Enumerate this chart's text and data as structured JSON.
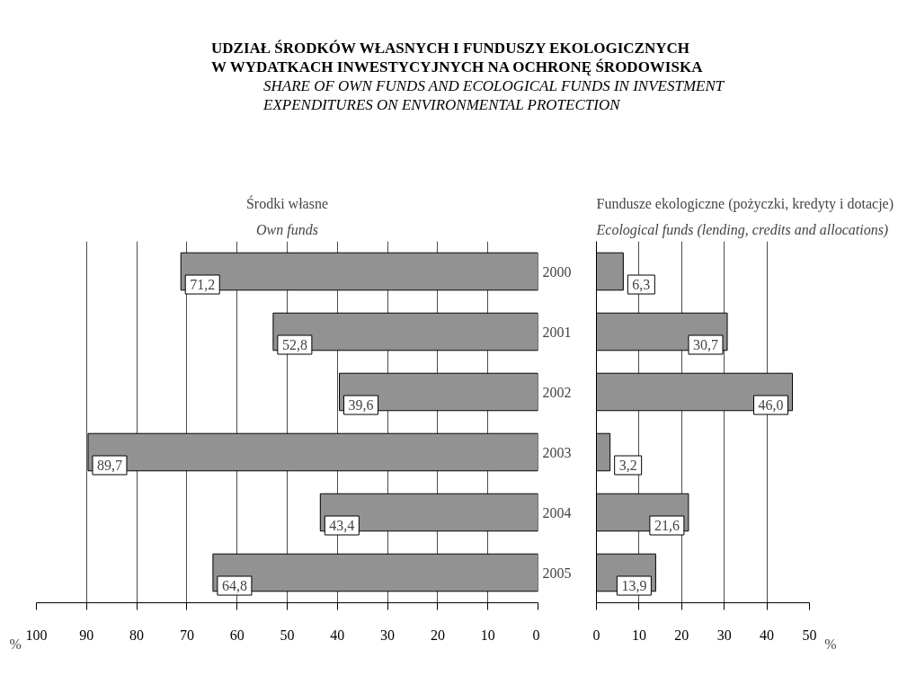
{
  "chart_data": [
    {
      "type": "other",
      "title": "UDZIAŁ ŚRODKÓW WŁASNYCH I FUNDUSZY EKOLOGICZNYCH\nW WYDATKACH INWESTYCYJNYCH NA OCHRONĘ ŚRODOWISKA",
      "subtitle": "SHARE OF OWN FUNDS AND ECOLOGICAL FUNDS IN INVESTMENT\nEXPENDITURES ON ENVIRONMENTAL PROTECTION"
    },
    {
      "type": "bar",
      "orientation": "horizontal",
      "title": "Środki własne",
      "subtitle": "Own funds",
      "xlabel": "%",
      "categories": [
        "2000",
        "2001",
        "2002",
        "2003",
        "2004",
        "2005"
      ],
      "values": [
        71.2,
        52.8,
        39.6,
        89.7,
        43.4,
        64.8
      ],
      "color": "#929292",
      "value_labels": [
        "71,2",
        "52,8",
        "39,6",
        "89,7",
        "43,4",
        "64,8"
      ],
      "xlim": [
        100,
        0
      ],
      "xticks": [
        100,
        90,
        80,
        70,
        60,
        50,
        40,
        30,
        20,
        10,
        0
      ],
      "grid": "x",
      "tick_labels": "x"
    },
    {
      "type": "bar",
      "orientation": "horizontal",
      "title": "Fundusze ekologiczne (pożyczki, kredyty i dotacje)",
      "subtitle": "Ecological funds (lending, credits and allocations)",
      "xlabel": "%",
      "categories": [
        "2000",
        "2001",
        "2002",
        "2003",
        "2004",
        "2005"
      ],
      "values": [
        6.3,
        30.7,
        46.0,
        3.2,
        21.6,
        13.9
      ],
      "color": "#929292",
      "value_labels": [
        "6,3",
        "30,7",
        "46,0",
        "3,2",
        "21,6",
        "13,9"
      ],
      "xlim": [
        0,
        50
      ],
      "xticks": [
        0,
        10,
        20,
        30,
        40,
        50
      ],
      "grid": "x"
    }
  ]
}
